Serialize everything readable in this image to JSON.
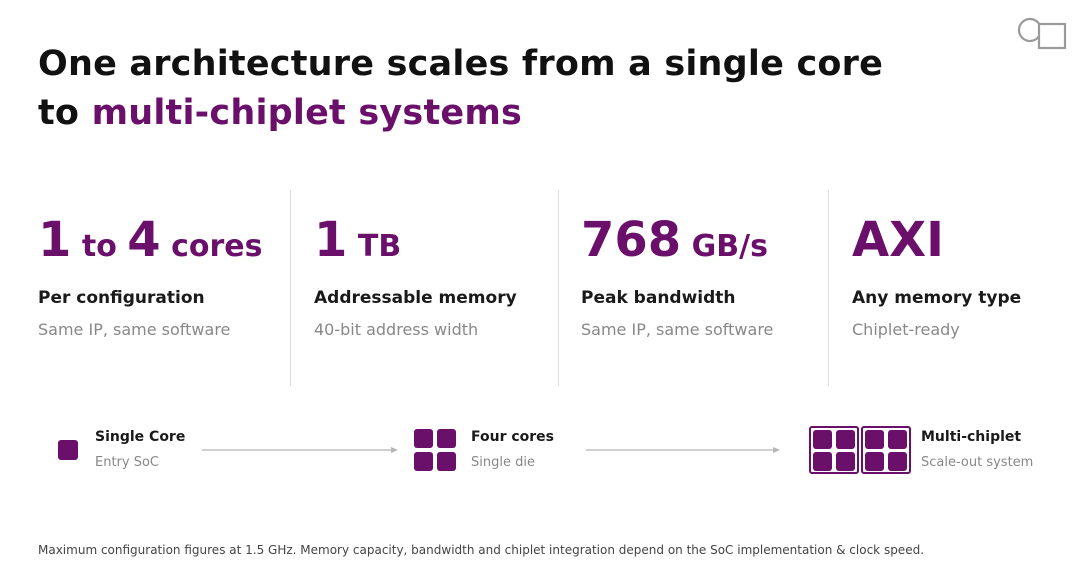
{
  "colors": {
    "accent": "#6a0f6a",
    "text": "#1a1a1a",
    "muted": "#888888"
  },
  "logo": {
    "icon": "circle-square-logo-icon"
  },
  "headline": {
    "line1": "One architecture scales from a single core",
    "line2_prefix": "to ",
    "line2_accent": "multi-chiplet systems"
  },
  "stats": [
    {
      "value_parts": [
        "1",
        " to ",
        "4",
        " cores"
      ],
      "label": "Per configuration",
      "sub": "Same IP, same software"
    },
    {
      "value_parts": [
        "1",
        " TB"
      ],
      "label": "Addressable memory",
      "sub": "40-bit address width"
    },
    {
      "value_parts": [
        "768",
        " GB/s"
      ],
      "label": "Peak bandwidth",
      "sub": "Same IP, same software"
    },
    {
      "value_parts": [
        "AXI"
      ],
      "label": "Any memory type",
      "sub": "Chiplet-ready"
    }
  ],
  "flow": [
    {
      "title": "Single Core",
      "sub": "Entry SoC",
      "icon": "single-core-icon"
    },
    {
      "title": "Four cores",
      "sub": "Single die",
      "icon": "four-cores-icon"
    },
    {
      "title": "Multi-chiplet",
      "sub": "Scale-out system",
      "icon": "multi-chiplet-icon"
    }
  ],
  "footnote": "Maximum configuration figures at 1.5 GHz. Memory capacity, bandwidth and chiplet integration depend on the SoC implementation & clock speed."
}
